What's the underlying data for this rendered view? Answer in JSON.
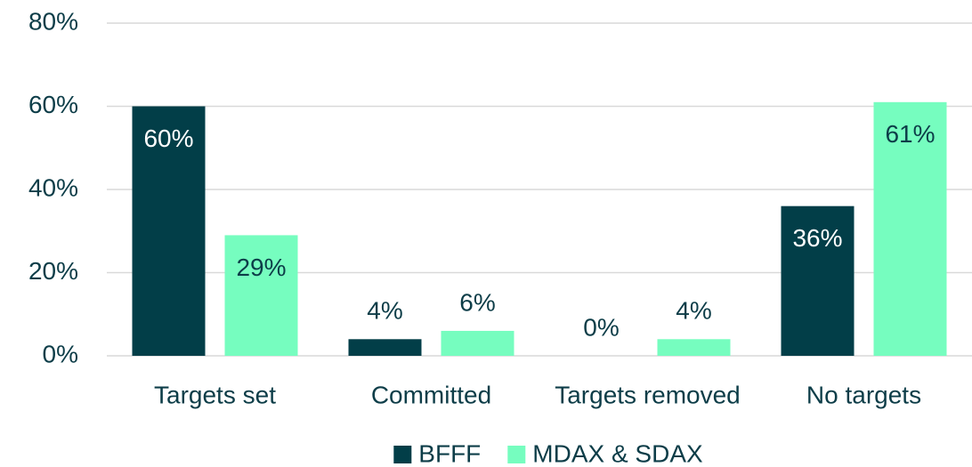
{
  "chart_data": {
    "type": "bar",
    "categories": [
      "Targets set",
      "Committed",
      "Targets removed",
      "No targets"
    ],
    "series": [
      {
        "name": "BFFF",
        "color": "#023e48",
        "values": [
          60,
          4,
          0,
          36
        ],
        "value_labels": [
          "60%",
          "4%",
          "0%",
          "36%"
        ]
      },
      {
        "name": "MDAX & SDAX",
        "color": "#76fdbf",
        "values": [
          29,
          6,
          4,
          61
        ],
        "value_labels": [
          "29%",
          "6%",
          "4%",
          "61%"
        ]
      }
    ],
    "ylim": [
      0,
      80
    ],
    "yticks": [
      {
        "value": 0,
        "label": "0%"
      },
      {
        "value": 20,
        "label": "20%"
      },
      {
        "value": 40,
        "label": "40%"
      },
      {
        "value": 60,
        "label": "60%"
      },
      {
        "value": 80,
        "label": "80%"
      }
    ],
    "grid": true,
    "legend": "bottom"
  }
}
